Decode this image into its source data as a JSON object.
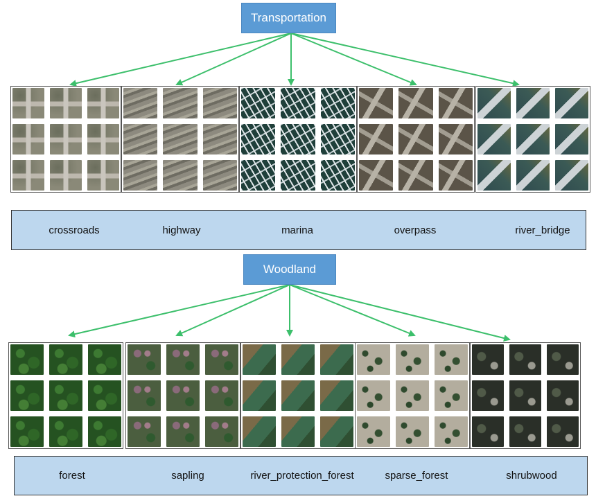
{
  "transportation": {
    "title": "Transportation",
    "categories": [
      "crossroads",
      "highway",
      "marina",
      "overpass",
      "river_bridge"
    ]
  },
  "woodland": {
    "title": "Woodland",
    "categories": [
      "forest",
      "sapling",
      "river_protection_forest",
      "sparse_forest",
      "shrubwood"
    ]
  },
  "colors": {
    "title_box": "#5b9bd5",
    "label_bar": "#bdd7ee",
    "arrow": "#3cbf6b"
  }
}
